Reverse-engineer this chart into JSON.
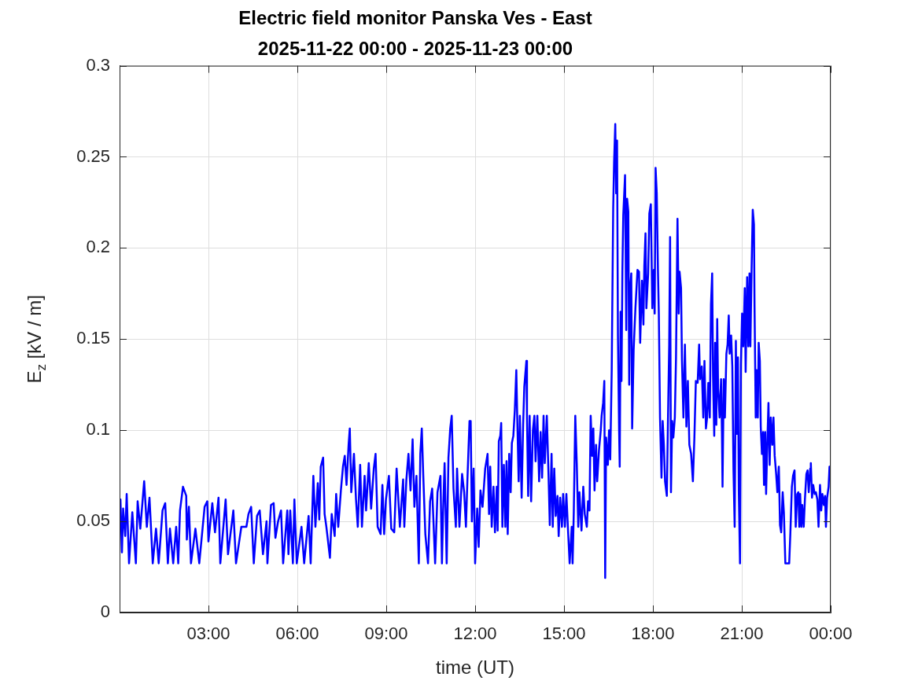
{
  "chart_data": {
    "type": "line",
    "title": "Electric field monitor Panska Ves - East",
    "subtitle": "2025-11-22 00:00 - 2025-11-23 00:00",
    "xlabel": "time (UT)",
    "ylabel": "E$_{z}$ [kV / m]",
    "color": "#0000ff",
    "grid": true,
    "xlim": [
      0,
      24
    ],
    "xticks": [
      {
        "value": 3,
        "label": "03:00"
      },
      {
        "value": 6,
        "label": "06:00"
      },
      {
        "value": 9,
        "label": "09:00"
      },
      {
        "value": 12,
        "label": "12:00"
      },
      {
        "value": 15,
        "label": "15:00"
      },
      {
        "value": 18,
        "label": "18:00"
      },
      {
        "value": 21,
        "label": "21:00"
      },
      {
        "value": 24,
        "label": "00:00"
      }
    ],
    "ylim": [
      0,
      0.3
    ],
    "yticks": [
      0,
      0.05,
      0.1,
      0.15,
      0.2,
      0.25,
      0.3
    ],
    "x": [
      0,
      0.03,
      0.08,
      0.12,
      0.19,
      0.24,
      0.32,
      0.43,
      0.55,
      0.61,
      0.7,
      0.83,
      0.92,
      1.01,
      1.12,
      1.23,
      1.32,
      1.45,
      1.54,
      1.63,
      1.7,
      1.81,
      1.91,
      1.98,
      2.04,
      2.14,
      2.25,
      2.27,
      2.34,
      2.41,
      2.56,
      2.69,
      2.87,
      2.96,
      3.0,
      3.13,
      3.22,
      3.34,
      3.4,
      3.58,
      3.66,
      3.84,
      3.93,
      4.11,
      4.28,
      4.35,
      4.44,
      4.53,
      4.64,
      4.73,
      4.84,
      4.96,
      4.99,
      5.11,
      5.2,
      5.26,
      5.35,
      5.45,
      5.52,
      5.66,
      5.7,
      5.76,
      5.85,
      5.9,
      5.98,
      6.14,
      6.23,
      6.38,
      6.45,
      6.54,
      6.61,
      6.69,
      6.74,
      6.79,
      6.87,
      6.92,
      6.98,
      7.1,
      7.16,
      7.26,
      7.31,
      7.38,
      7.47,
      7.54,
      7.6,
      7.66,
      7.73,
      7.77,
      7.82,
      7.91,
      7.98,
      8.04,
      8.12,
      8.18,
      8.27,
      8.32,
      8.41,
      8.49,
      8.58,
      8.64,
      8.71,
      8.81,
      8.87,
      8.93,
      8.99,
      9.09,
      9.17,
      9.27,
      9.35,
      9.46,
      9.57,
      9.61,
      9.68,
      9.75,
      9.82,
      9.89,
      9.95,
      10.02,
      10.1,
      10.15,
      10.2,
      10.25,
      10.32,
      10.41,
      10.48,
      10.55,
      10.65,
      10.73,
      10.83,
      10.88,
      10.92,
      10.97,
      11.04,
      11.1,
      11.16,
      11.21,
      11.27,
      11.35,
      11.39,
      11.47,
      11.56,
      11.63,
      11.69,
      11.74,
      11.81,
      11.85,
      11.89,
      11.95,
      12.0,
      12.07,
      12.12,
      12.18,
      12.25,
      12.34,
      12.42,
      12.47,
      12.51,
      12.56,
      12.62,
      12.67,
      12.73,
      12.76,
      12.8,
      12.85,
      12.88,
      12.92,
      12.97,
      13.02,
      13.06,
      13.1,
      13.15,
      13.2,
      13.24,
      13.29,
      13.34,
      13.39,
      13.42,
      13.47,
      13.51,
      13.57,
      13.62,
      13.66,
      13.73,
      13.75,
      13.79,
      13.84,
      13.89,
      13.95,
      14.0,
      14.04,
      14.1,
      14.16,
      14.21,
      14.26,
      14.31,
      14.35,
      14.42,
      14.48,
      14.52,
      14.58,
      14.62,
      14.67,
      14.72,
      14.78,
      14.82,
      14.87,
      14.93,
      14.97,
      15.03,
      15.08,
      15.13,
      15.19,
      15.26,
      15.29,
      15.33,
      15.38,
      15.43,
      15.48,
      15.52,
      15.59,
      15.65,
      15.7,
      15.77,
      15.81,
      15.86,
      15.9,
      15.95,
      15.99,
      16.03,
      16.08,
      16.12,
      16.18,
      16.24,
      16.27,
      16.32,
      16.36,
      16.39,
      16.42,
      16.48,
      16.52,
      16.56,
      16.61,
      16.66,
      16.69,
      16.73,
      16.76,
      16.79,
      16.82,
      16.86,
      16.88,
      16.91,
      16.94,
      16.97,
      17.0,
      17.06,
      17.1,
      17.13,
      17.17,
      17.2,
      17.23,
      17.27,
      17.3,
      17.35,
      17.41,
      17.48,
      17.53,
      17.57,
      17.63,
      17.68,
      17.71,
      17.75,
      17.78,
      17.84,
      17.88,
      17.93,
      17.98,
      18.03,
      18.06,
      18.09,
      18.13,
      18.17,
      18.2,
      18.24,
      18.29,
      18.33,
      18.37,
      18.41,
      18.47,
      18.51,
      18.55,
      18.58,
      18.61,
      18.65,
      18.69,
      18.74,
      18.78,
      18.83,
      18.87,
      18.9,
      18.95,
      18.98,
      19.03,
      19.08,
      19.13,
      19.18,
      19.23,
      19.29,
      19.35,
      19.4,
      19.45,
      19.51,
      19.56,
      19.59,
      19.65,
      19.7,
      19.74,
      19.79,
      19.83,
      19.87,
      19.92,
      19.96,
      20.0,
      20.03,
      20.07,
      20.1,
      20.14,
      20.17,
      20.2,
      20.25,
      20.3,
      20.33,
      20.35,
      20.39,
      20.43,
      20.48,
      20.52,
      20.56,
      20.59,
      20.64,
      20.68,
      20.72,
      20.76,
      20.8,
      20.83,
      20.87,
      20.9,
      20.94,
      20.97,
      21.01,
      21.05,
      21.1,
      21.13,
      21.18,
      21.22,
      21.26,
      21.29,
      21.33,
      21.37,
      21.41,
      21.43,
      21.47,
      21.5,
      21.54,
      21.57,
      21.61,
      21.64,
      21.68,
      21.72,
      21.75,
      21.79,
      21.82,
      21.86,
      21.9,
      21.94,
      21.98,
      22.03,
      22.07,
      22.11,
      22.16,
      22.2,
      22.25,
      22.29,
      22.33,
      22.38,
      22.42,
      22.47,
      22.53,
      22.6,
      22.64,
      22.69,
      22.73,
      22.78,
      22.82,
      22.87,
      22.91,
      22.94,
      22.97,
      23.01,
      23.04,
      23.09,
      23.13,
      23.18,
      23.22,
      23.26,
      23.31,
      23.33,
      23.37,
      23.41,
      23.46,
      23.5,
      23.55,
      23.59,
      23.64,
      23.68,
      23.72,
      23.77,
      23.81,
      23.84,
      23.88,
      23.93,
      23.96,
      24
    ],
    "values": [
      0.055,
      0.062,
      0.033,
      0.057,
      0.042,
      0.065,
      0.027,
      0.055,
      0.027,
      0.061,
      0.046,
      0.072,
      0.047,
      0.063,
      0.027,
      0.046,
      0.027,
      0.056,
      0.06,
      0.027,
      0.046,
      0.027,
      0.047,
      0.027,
      0.056,
      0.069,
      0.064,
      0.04,
      0.058,
      0.027,
      0.046,
      0.027,
      0.058,
      0.061,
      0.039,
      0.06,
      0.044,
      0.063,
      0.027,
      0.062,
      0.032,
      0.056,
      0.027,
      0.047,
      0.047,
      0.054,
      0.058,
      0.027,
      0.053,
      0.056,
      0.032,
      0.05,
      0.027,
      0.059,
      0.06,
      0.041,
      0.05,
      0.056,
      0.027,
      0.056,
      0.032,
      0.056,
      0.027,
      0.062,
      0.027,
      0.047,
      0.027,
      0.053,
      0.027,
      0.075,
      0.047,
      0.071,
      0.051,
      0.08,
      0.085,
      0.054,
      0.047,
      0.03,
      0.054,
      0.042,
      0.065,
      0.047,
      0.067,
      0.08,
      0.086,
      0.07,
      0.092,
      0.101,
      0.066,
      0.087,
      0.062,
      0.047,
      0.081,
      0.047,
      0.075,
      0.056,
      0.082,
      0.057,
      0.079,
      0.087,
      0.047,
      0.043,
      0.07,
      0.043,
      0.062,
      0.075,
      0.046,
      0.044,
      0.079,
      0.047,
      0.073,
      0.047,
      0.073,
      0.087,
      0.067,
      0.095,
      0.058,
      0.075,
      0.027,
      0.087,
      0.101,
      0.075,
      0.043,
      0.027,
      0.061,
      0.068,
      0.027,
      0.066,
      0.075,
      0.027,
      0.056,
      0.082,
      0.027,
      0.085,
      0.101,
      0.108,
      0.068,
      0.047,
      0.079,
      0.047,
      0.076,
      0.066,
      0.047,
      0.073,
      0.105,
      0.105,
      0.05,
      0.079,
      0.027,
      0.057,
      0.036,
      0.067,
      0.058,
      0.079,
      0.087,
      0.054,
      0.08,
      0.047,
      0.069,
      0.044,
      0.069,
      0.045,
      0.094,
      0.097,
      0.104,
      0.047,
      0.081,
      0.047,
      0.083,
      0.043,
      0.087,
      0.066,
      0.093,
      0.097,
      0.111,
      0.133,
      0.108,
      0.072,
      0.108,
      0.063,
      0.103,
      0.124,
      0.138,
      0.108,
      0.064,
      0.108,
      0.061,
      0.1,
      0.108,
      0.083,
      0.108,
      0.072,
      0.099,
      0.074,
      0.108,
      0.082,
      0.108,
      0.074,
      0.048,
      0.087,
      0.047,
      0.079,
      0.053,
      0.064,
      0.042,
      0.063,
      0.047,
      0.065,
      0.047,
      0.065,
      0.047,
      0.027,
      0.047,
      0.027,
      0.055,
      0.108,
      0.082,
      0.047,
      0.066,
      0.045,
      0.069,
      0.054,
      0.047,
      0.061,
      0.056,
      0.108,
      0.086,
      0.101,
      0.067,
      0.092,
      0.072,
      0.089,
      0.1,
      0.108,
      0.115,
      0.127,
      0.019,
      0.096,
      0.081,
      0.1,
      0.084,
      0.133,
      0.222,
      0.247,
      0.268,
      0.23,
      0.259,
      0.152,
      0.099,
      0.08,
      0.165,
      0.127,
      0.187,
      0.218,
      0.24,
      0.155,
      0.227,
      0.22,
      0.125,
      0.177,
      0.186,
      0.101,
      0.144,
      0.167,
      0.188,
      0.187,
      0.148,
      0.182,
      0.158,
      0.19,
      0.208,
      0.167,
      0.186,
      0.219,
      0.224,
      0.167,
      0.188,
      0.164,
      0.244,
      0.23,
      0.188,
      0.164,
      0.107,
      0.074,
      0.105,
      0.092,
      0.072,
      0.064,
      0.107,
      0.147,
      0.206,
      0.066,
      0.105,
      0.096,
      0.107,
      0.14,
      0.216,
      0.164,
      0.187,
      0.178,
      0.139,
      0.107,
      0.147,
      0.102,
      0.127,
      0.092,
      0.087,
      0.072,
      0.096,
      0.127,
      0.126,
      0.147,
      0.128,
      0.135,
      0.107,
      0.138,
      0.101,
      0.107,
      0.126,
      0.107,
      0.169,
      0.186,
      0.13,
      0.097,
      0.148,
      0.103,
      0.161,
      0.123,
      0.107,
      0.128,
      0.099,
      0.069,
      0.128,
      0.107,
      0.142,
      0.147,
      0.163,
      0.142,
      0.152,
      0.135,
      0.078,
      0.047,
      0.149,
      0.098,
      0.14,
      0.066,
      0.027,
      0.136,
      0.164,
      0.146,
      0.178,
      0.132,
      0.184,
      0.146,
      0.186,
      0.146,
      0.188,
      0.221,
      0.213,
      0.168,
      0.107,
      0.133,
      0.107,
      0.148,
      0.138,
      0.102,
      0.087,
      0.099,
      0.07,
      0.099,
      0.065,
      0.092,
      0.115,
      0.081,
      0.107,
      0.092,
      0.107,
      0.086,
      0.076,
      0.066,
      0.08,
      0.048,
      0.044,
      0.066,
      0.055,
      0.027,
      0.027,
      0.027,
      0.044,
      0.069,
      0.075,
      0.078,
      0.047,
      0.065,
      0.066,
      0.047,
      0.065,
      0.047,
      0.059,
      0.047,
      0.062,
      0.076,
      0.078,
      0.066,
      0.079,
      0.082,
      0.063,
      0.07,
      0.065,
      0.066,
      0.062,
      0.047,
      0.07,
      0.056,
      0.065,
      0.059,
      0.064,
      0.047,
      0.063,
      0.069,
      0.08,
      0.08
    ]
  }
}
